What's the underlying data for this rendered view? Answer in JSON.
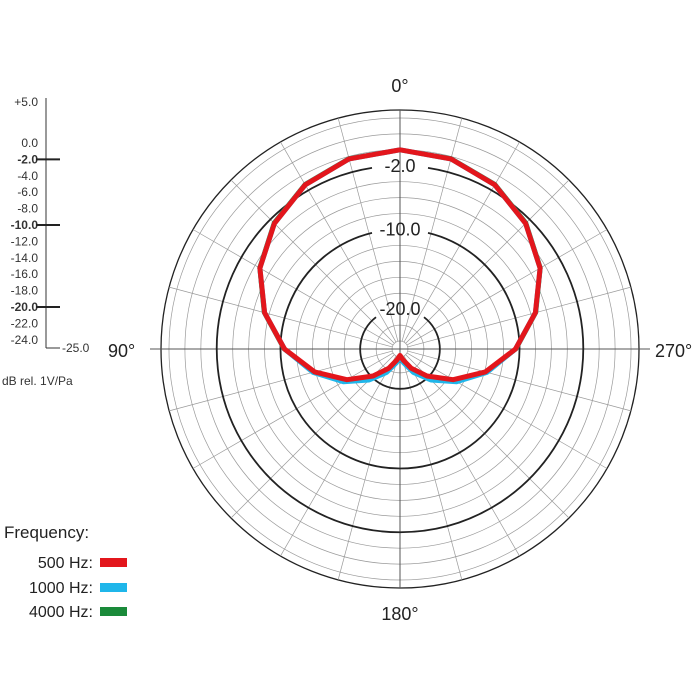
{
  "chart_data": {
    "type": "polar-line",
    "angle_labels": [
      "0°",
      "90°",
      "180°",
      "270°"
    ],
    "ring_labels": [
      "-2.0",
      "-10.0",
      "-20.0"
    ],
    "ring_values": [
      -2,
      -10,
      -20
    ],
    "rlim": [
      -25,
      5
    ],
    "grid": true,
    "scale_ticks": [
      "+5.0",
      "0.0",
      "-2.0",
      "-4.0",
      "-6.0",
      "-8.0",
      "-10.0",
      "-12.0",
      "-14.0",
      "-16.0",
      "-18.0",
      "-20.0",
      "-22.0",
      "-24.0"
    ],
    "scale_tick_values": [
      5,
      0,
      -2,
      -4,
      -6,
      -8,
      -10,
      -12,
      -14,
      -16,
      -18,
      -20,
      -22,
      -24
    ],
    "scale_bold_ticks": [
      "-2.0",
      "-10.0",
      "-20.0"
    ],
    "scale_end_label": "-25.0",
    "unit_label": "dB rel. 1V/Pa",
    "legend_title": "Frequency:",
    "legend_placement": "bottom-left",
    "theta_deg": [
      0,
      15,
      30,
      45,
      60,
      75,
      90,
      105,
      120,
      135,
      150,
      165,
      180
    ],
    "series": [
      {
        "name": "500 Hz:",
        "color": "#e3161c",
        "values": [
          0,
          -0.3,
          -1.2,
          -2.7,
          -4.7,
          -7.4,
          -10.5,
          -13.9,
          -17.3,
          -20.2,
          -22.2,
          -23.6,
          -24.2
        ]
      },
      {
        "name": "1000 Hz:",
        "color": "#1fb6ea",
        "values": [
          0,
          -0.3,
          -1.2,
          -2.7,
          -4.7,
          -7.4,
          -10.5,
          -13.7,
          -16.8,
          -19.5,
          -21.6,
          -23.2,
          -24.0
        ]
      },
      {
        "name": "4000 Hz:",
        "color": "#1a8a3a",
        "values": [
          0,
          -0.2,
          -1.1,
          -2.6,
          -4.6,
          -7.3,
          -10.4,
          -13.8,
          -17.2,
          -20.1,
          -22.1,
          -23.5,
          -24.1
        ]
      }
    ]
  }
}
